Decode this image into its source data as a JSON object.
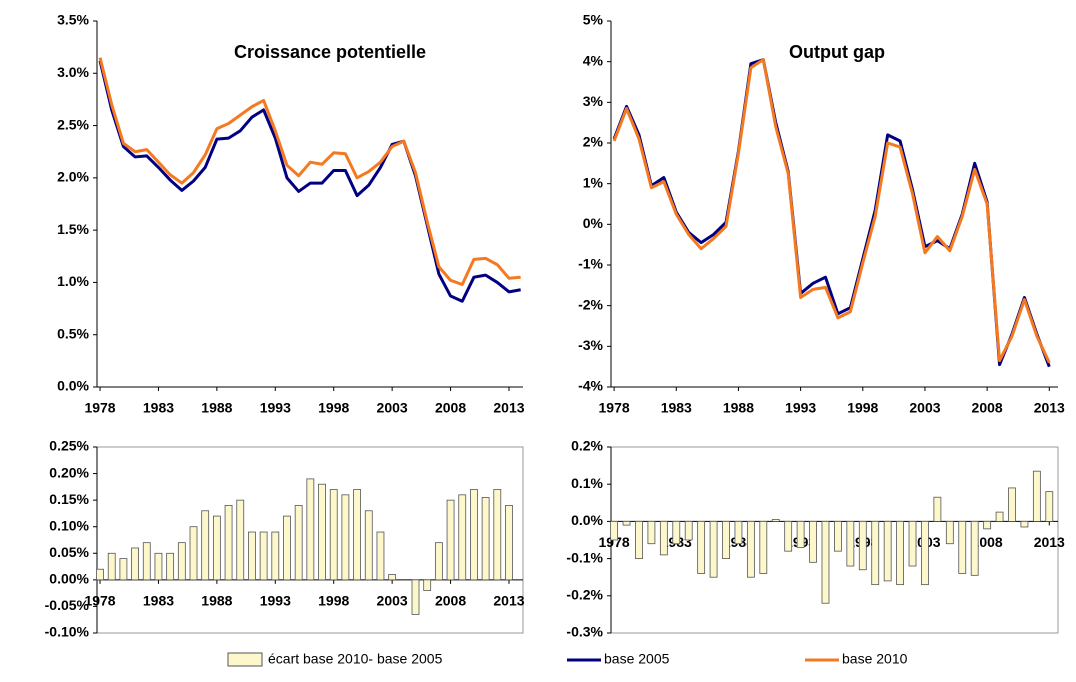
{
  "chart_data": [
    {
      "type": "line",
      "title": "Croissance potentielle",
      "x": [
        1978,
        1979,
        1980,
        1981,
        1982,
        1983,
        1984,
        1985,
        1986,
        1987,
        1988,
        1989,
        1990,
        1991,
        1992,
        1993,
        1994,
        1995,
        1996,
        1997,
        1998,
        1999,
        2000,
        2001,
        2002,
        2003,
        2004,
        2005,
        2006,
        2007,
        2008,
        2009,
        2010,
        2011,
        2012,
        2013,
        2014
      ],
      "series": [
        {
          "name": "base 2005",
          "color": "#000080",
          "values": [
            3.12,
            2.65,
            2.3,
            2.2,
            2.21,
            2.1,
            1.98,
            1.88,
            1.97,
            2.1,
            2.37,
            2.38,
            2.45,
            2.58,
            2.65,
            2.38,
            2.0,
            1.87,
            1.95,
            1.95,
            2.07,
            2.07,
            1.83,
            1.93,
            2.1,
            2.32,
            2.35,
            2.02,
            1.55,
            1.08,
            0.87,
            0.82,
            1.05,
            1.07,
            1.0,
            0.91,
            0.93
          ]
        },
        {
          "name": "base 2010",
          "color": "#f47920",
          "values": [
            3.15,
            2.7,
            2.33,
            2.25,
            2.27,
            2.15,
            2.03,
            1.95,
            2.05,
            2.22,
            2.47,
            2.52,
            2.6,
            2.68,
            2.74,
            2.45,
            2.12,
            2.02,
            2.15,
            2.13,
            2.24,
            2.23,
            2.0,
            2.06,
            2.15,
            2.3,
            2.35,
            2.05,
            1.58,
            1.15,
            1.02,
            0.98,
            1.22,
            1.23,
            1.17,
            1.04,
            1.05
          ]
        }
      ],
      "xlim": [
        1977.74,
        2014.2
      ],
      "xticks": [
        1978,
        1983,
        1988,
        1993,
        1998,
        2003,
        2008,
        2013
      ],
      "ylim": [
        0,
        3.5
      ],
      "yticks": [
        {
          "value": 0,
          "label": "0.0%"
        },
        {
          "value": 0.5,
          "label": "0.5%"
        },
        {
          "value": 1,
          "label": "1.0%"
        },
        {
          "value": 1.5,
          "label": "1.5%"
        },
        {
          "value": 2,
          "label": "2.0%"
        },
        {
          "value": 2.5,
          "label": "2.5%"
        },
        {
          "value": 3,
          "label": "3.0%"
        },
        {
          "value": 3.5,
          "label": "3.5%"
        }
      ]
    },
    {
      "type": "line",
      "title": "Output gap",
      "x": [
        1978,
        1979,
        1980,
        1981,
        1982,
        1983,
        1984,
        1985,
        1986,
        1987,
        1988,
        1989,
        1990,
        1991,
        1992,
        1993,
        1994,
        1995,
        1996,
        1997,
        1998,
        1999,
        2000,
        2001,
        2002,
        2003,
        2004,
        2005,
        2006,
        2007,
        2008,
        2009,
        2010,
        2011,
        2012,
        2013
      ],
      "series": [
        {
          "color": "#000080",
          "values": [
            2.1,
            2.9,
            2.2,
            0.95,
            1.15,
            0.3,
            -0.2,
            -0.45,
            -0.25,
            0.05,
            1.8,
            3.95,
            4.05,
            2.5,
            1.3,
            -1.7,
            -1.45,
            -1.3,
            -2.2,
            -2.05,
            -0.85,
            0.35,
            2.2,
            2.05,
            0.85,
            -0.55,
            -0.4,
            -0.6,
            0.25,
            1.5,
            0.55,
            -3.45,
            -2.7,
            -1.8,
            -2.7,
            -3.5
          ]
        },
        {
          "color": "#f47920",
          "values": [
            2.05,
            2.85,
            2.1,
            0.9,
            1.05,
            0.25,
            -0.25,
            -0.6,
            -0.35,
            -0.05,
            1.75,
            3.85,
            4.05,
            2.4,
            1.25,
            -1.8,
            -1.6,
            -1.55,
            -2.3,
            -2.15,
            -0.95,
            0.2,
            2.0,
            1.9,
            0.75,
            -0.7,
            -0.3,
            -0.65,
            0.2,
            1.35,
            0.5,
            -3.35,
            -2.75,
            -1.85,
            -2.75,
            -3.4
          ]
        }
      ],
      "xlim": [
        1977.75,
        2013.7
      ],
      "xticks": [
        1978,
        1983,
        1988,
        1993,
        1998,
        2003,
        2008,
        2013
      ],
      "ylim": [
        -4,
        5
      ],
      "yticks": [
        {
          "value": -4,
          "label": "-4%"
        },
        {
          "value": -3,
          "label": "-3%"
        },
        {
          "value": -2,
          "label": "-2%"
        },
        {
          "value": -1,
          "label": "-1%"
        },
        {
          "value": 0,
          "label": "0%"
        },
        {
          "value": 1,
          "label": "1%"
        },
        {
          "value": 2,
          "label": "2%"
        },
        {
          "value": 3,
          "label": "3%"
        },
        {
          "value": 4,
          "label": "4%"
        },
        {
          "value": 5,
          "label": "5%"
        }
      ]
    },
    {
      "type": "bar",
      "x": [
        1978,
        1979,
        1980,
        1981,
        1982,
        1983,
        1984,
        1985,
        1986,
        1987,
        1988,
        1989,
        1990,
        1991,
        1992,
        1993,
        1994,
        1995,
        1996,
        1997,
        1998,
        1999,
        2000,
        2001,
        2002,
        2003,
        2004,
        2005,
        2006,
        2007,
        2008,
        2009,
        2010,
        2011,
        2012,
        2013
      ],
      "series": [
        {
          "name": "écart base 2010- base 2005",
          "color": "#fcf8cc",
          "values": [
            0.02,
            0.05,
            0.04,
            0.06,
            0.07,
            0.05,
            0.05,
            0.07,
            0.1,
            0.13,
            0.12,
            0.14,
            0.15,
            0.09,
            0.09,
            0.09,
            0.12,
            0.14,
            0.19,
            0.18,
            0.17,
            0.16,
            0.17,
            0.13,
            0.09,
            0.01,
            0,
            -0.065,
            -0.02,
            0.07,
            0.15,
            0.16,
            0.17,
            0.155,
            0.17,
            0.14
          ]
        }
      ],
      "xlim": [
        1977.74,
        2014.2
      ],
      "xticks": [
        1978,
        1983,
        1988,
        1993,
        1998,
        2003,
        2008,
        2013
      ],
      "ylim": [
        -0.1,
        0.25
      ],
      "yticks": [
        {
          "value": -0.1,
          "label": "-0.10%"
        },
        {
          "value": -0.05,
          "label": "-0.05%"
        },
        {
          "value": 0,
          "label": "0.00%"
        },
        {
          "value": 0.05,
          "label": "0.05%"
        },
        {
          "value": 0.1,
          "label": "0.10%"
        },
        {
          "value": 0.15,
          "label": "0.15%"
        },
        {
          "value": 0.2,
          "label": "0.20%"
        },
        {
          "value": 0.25,
          "label": "0.25%"
        }
      ]
    },
    {
      "type": "bar",
      "x": [
        1978,
        1979,
        1980,
        1981,
        1982,
        1983,
        1984,
        1985,
        1986,
        1987,
        1988,
        1989,
        1990,
        1991,
        1992,
        1993,
        1994,
        1995,
        1996,
        1997,
        1998,
        1999,
        2000,
        2001,
        2002,
        2003,
        2004,
        2005,
        2006,
        2007,
        2008,
        2009,
        2010,
        2011,
        2012,
        2013
      ],
      "series": [
        {
          "color": "#fcf8cc",
          "values": [
            -0.05,
            -0.01,
            -0.1,
            -0.06,
            -0.09,
            -0.06,
            -0.05,
            -0.14,
            -0.15,
            -0.1,
            -0.06,
            -0.15,
            -0.14,
            0.005,
            -0.08,
            -0.07,
            -0.11,
            -0.22,
            -0.08,
            -0.12,
            -0.13,
            -0.17,
            -0.16,
            -0.17,
            -0.12,
            -0.17,
            0.065,
            -0.06,
            -0.14,
            -0.145,
            -0.02,
            0.025,
            0.09,
            -0.015,
            0.135,
            0.08
          ]
        }
      ],
      "xlim": [
        1977.75,
        2013.7
      ],
      "xticks": [
        1978,
        1983,
        1988,
        1993,
        1998,
        2003,
        2008,
        2013
      ],
      "ylim": [
        -0.3,
        0.2
      ],
      "yticks": [
        {
          "value": -0.3,
          "label": "-0.3%"
        },
        {
          "value": -0.2,
          "label": "-0.2%"
        },
        {
          "value": -0.1,
          "label": "-0.1%"
        },
        {
          "value": 0,
          "label": "0.0%"
        },
        {
          "value": 0.1,
          "label": "0.1%"
        },
        {
          "value": 0.2,
          "label": "0.2%"
        }
      ]
    }
  ]
}
